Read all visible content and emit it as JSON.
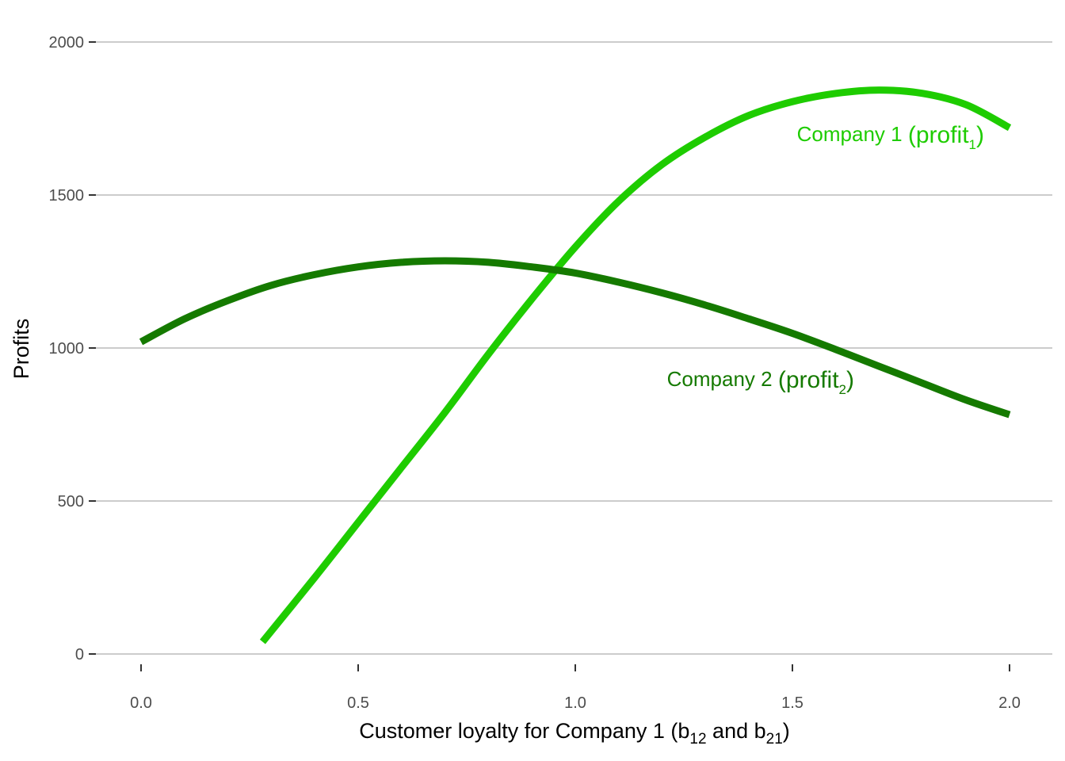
{
  "chart_data": {
    "type": "line",
    "title": "",
    "xlabel": "Customer loyalty for Company 1",
    "xlabel_suffix": {
      "open": "(b",
      "s1": "12",
      "mid": " and b",
      "s2": "21",
      "close": ")"
    },
    "ylabel": "Profits",
    "xlim": [
      0,
      2
    ],
    "ylim": [
      0,
      2000
    ],
    "x_ticks": [
      "0.0",
      "0.5",
      "1.0",
      "1.5",
      "2.0"
    ],
    "y_ticks": [
      "0",
      "500",
      "1000",
      "1500",
      "2000"
    ],
    "grid": "horizontal",
    "legend": "none",
    "series": [
      {
        "name": "Company 1",
        "label_parts": {
          "main": "Company 1 ",
          "open": "(profit",
          "sub": "1",
          "close": ")"
        },
        "color": "#1ecc00",
        "x": [
          0.28,
          0.4,
          0.5,
          0.6,
          0.7,
          0.8,
          0.9,
          1.0,
          1.1,
          1.2,
          1.3,
          1.4,
          1.5,
          1.6,
          1.7,
          1.8,
          1.9,
          2.0
        ],
        "y": [
          40,
          250,
          430,
          610,
          790,
          980,
          1160,
          1330,
          1480,
          1600,
          1690,
          1760,
          1805,
          1832,
          1843,
          1832,
          1795,
          1720
        ]
      },
      {
        "name": "Company 2",
        "label_parts": {
          "main": "Company 2 ",
          "open": "(profit",
          "sub": "2",
          "close": ")"
        },
        "color": "#157a00",
        "x": [
          0.0,
          0.1,
          0.2,
          0.3,
          0.4,
          0.5,
          0.6,
          0.7,
          0.8,
          0.9,
          1.0,
          1.1,
          1.2,
          1.3,
          1.4,
          1.5,
          1.6,
          1.7,
          1.8,
          1.9,
          2.0
        ],
        "y": [
          1020,
          1095,
          1155,
          1205,
          1240,
          1265,
          1280,
          1285,
          1280,
          1265,
          1245,
          1215,
          1180,
          1140,
          1095,
          1048,
          995,
          940,
          885,
          830,
          782
        ]
      }
    ]
  }
}
